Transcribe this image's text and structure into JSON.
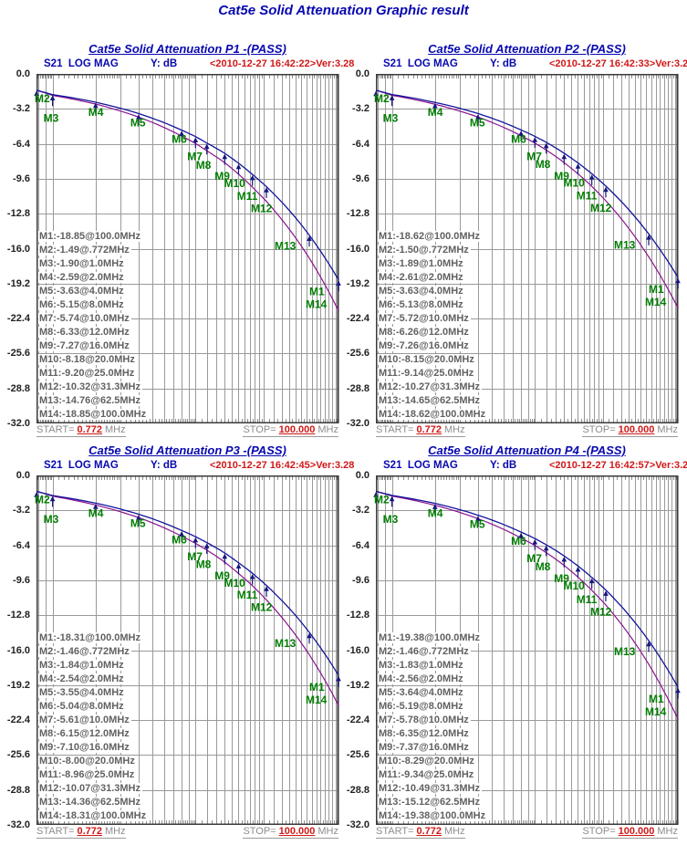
{
  "page_title": "Cat5e Solid Attenuation Graphic result",
  "colors": {
    "navy": "#0808b0",
    "red": "#d01818",
    "green": "#007d00",
    "trace_blue": "#14149b",
    "trace_purple": "#8a1390",
    "grid": "#9a9a9a",
    "ruler": "#8f8f8f",
    "border": "#3a3a3a",
    "marker_list_text": "#616161",
    "axis_text": "#222222",
    "range_text": "#8c8c8c"
  },
  "y_axis": {
    "unit": "dB",
    "ticks": [
      "0.0",
      "-3.2",
      "-6.4",
      "-9.6",
      "-12.8",
      "-16.0",
      "-19.2",
      "-22.4",
      "-25.6",
      "-28.8",
      "-32.0"
    ]
  },
  "marker_names": [
    "M2",
    "M3",
    "M4",
    "M5",
    "M6",
    "M7",
    "M8",
    "M9",
    "M10",
    "M11",
    "M12",
    "M13",
    "M14"
  ],
  "extra_marker_at_stop": "M1",
  "charts": [
    {
      "title": "Cat5e Solid Attenuation P1 -(PASS)",
      "header_meas": "S21  LOG MAG",
      "header_y": "Y: dB",
      "timestamp": "<2010-12-27 16:42:22>Ver:3.28",
      "start_label": "START=",
      "start_value": "0.772",
      "stop_label": "STOP=",
      "stop_value": "100.000",
      "freq_unit": "MHz",
      "marker_list": [
        "M1:-18.85@100.0MHz",
        "M2:-1.49@.772MHz",
        "M3:-1.90@1.0MHz",
        "M4:-2.59@2.0MHz",
        "M5:-3.63@4.0MHz",
        "M6:-5.15@8.0MHz",
        "M7:-5.74@10.0MHz",
        "M8:-6.33@12.0MHz",
        "M9:-7.27@16.0MHz",
        "M10:-8.18@20.0MHz",
        "M11:-9.20@25.0MHz",
        "M12:-10.32@31.3MHz",
        "M13:-14.76@62.5MHz",
        "M14:-18.85@100.0MHz"
      ]
    },
    {
      "title": "Cat5e Solid Attenuation P2 -(PASS)",
      "header_meas": "S21  LOG MAG",
      "header_y": "Y: dB",
      "timestamp": "<2010-12-27 16:42:33>Ver:3.28",
      "start_label": "START=",
      "start_value": "0.772",
      "stop_label": "STOP=",
      "stop_value": "100.000",
      "freq_unit": "MHz",
      "marker_list": [
        "M1:-18.62@100.0MHz",
        "M2:-1.50@.772MHz",
        "M3:-1.89@1.0MHz",
        "M4:-2.61@2.0MHz",
        "M5:-3.63@4.0MHz",
        "M6:-5.13@8.0MHz",
        "M7:-5.72@10.0MHz",
        "M8:-6.26@12.0MHz",
        "M9:-7.26@16.0MHz",
        "M10:-8.15@20.0MHz",
        "M11:-9.14@25.0MHz",
        "M12:-10.27@31.3MHz",
        "M13:-14.65@62.5MHz",
        "M14:-18.62@100.0MHz"
      ]
    },
    {
      "title": "Cat5e Solid Attenuation P3 -(PASS)",
      "header_meas": "S21  LOG MAG",
      "header_y": "Y: dB",
      "timestamp": "<2010-12-27 16:42:45>Ver:3.28",
      "start_label": "START=",
      "start_value": "0.772",
      "stop_label": "STOP=",
      "stop_value": "100.000",
      "freq_unit": "MHz",
      "marker_list": [
        "M1:-18.31@100.0MHz",
        "M2:-1.46@.772MHz",
        "M3:-1.84@1.0MHz",
        "M4:-2.54@2.0MHz",
        "M5:-3.55@4.0MHz",
        "M6:-5.04@8.0MHz",
        "M7:-5.61@10.0MHz",
        "M8:-6.15@12.0MHz",
        "M9:-7.10@16.0MHz",
        "M10:-8.00@20.0MHz",
        "M11:-8.96@25.0MHz",
        "M12:-10.07@31.3MHz",
        "M13:-14.36@62.5MHz",
        "M14:-18.31@100.0MHz"
      ]
    },
    {
      "title": "Cat5e Solid Attenuation P4 -(PASS)",
      "header_meas": "S21  LOG MAG",
      "header_y": "Y: dB",
      "timestamp": "<2010-12-27 16:42:57>Ver:3.28",
      "start_label": "START=",
      "start_value": "0.772",
      "stop_label": "STOP=",
      "stop_value": "100.000",
      "freq_unit": "MHz",
      "marker_list": [
        "M1:-19.38@100.0MHz",
        "M2:-1.46@.772MHz",
        "M3:-1.83@1.0MHz",
        "M4:-2.56@2.0MHz",
        "M5:-3.64@4.0MHz",
        "M6:-5.19@8.0MHz",
        "M7:-5.78@10.0MHz",
        "M8:-6.35@12.0MHz",
        "M9:-7.37@16.0MHz",
        "M10:-8.29@20.0MHz",
        "M11:-9.34@25.0MHz",
        "M12:-10.49@31.3MHz",
        "M13:-15.12@62.5MHz",
        "M14:-19.38@100.0MHz"
      ]
    }
  ],
  "chart_data": [
    {
      "type": "line",
      "title": "Cat5e Solid Attenuation P1 -(PASS)",
      "x_scale": "log",
      "x_mhz": [
        0.772,
        1,
        2,
        4,
        8,
        10,
        12,
        16,
        20,
        25,
        31.3,
        62.5,
        100
      ],
      "xlim_mhz": [
        0.772,
        100
      ],
      "ylabel": "dB",
      "ylim": [
        -32,
        0
      ],
      "y_grid_step_db": 3.2,
      "series": [
        {
          "name": "S21 attenuation (blue trace, markers M1-M14)",
          "values": [
            -1.49,
            -1.9,
            -2.59,
            -3.63,
            -5.15,
            -5.74,
            -6.33,
            -7.27,
            -8.18,
            -9.2,
            -10.32,
            -14.76,
            -18.85
          ]
        },
        {
          "name": "second trace (purple, unlabeled, values estimated from plot)",
          "values": [
            -1.49,
            -1.97,
            -2.76,
            -3.95,
            -5.69,
            -6.37,
            -7.04,
            -8.13,
            -9.18,
            -10.37,
            -11.67,
            -16.86,
            -21.68
          ]
        }
      ]
    },
    {
      "type": "line",
      "title": "Cat5e Solid Attenuation P2 -(PASS)",
      "x_scale": "log",
      "x_mhz": [
        0.772,
        1,
        2,
        4,
        8,
        10,
        12,
        16,
        20,
        25,
        31.3,
        62.5,
        100
      ],
      "xlim_mhz": [
        0.772,
        100
      ],
      "ylabel": "dB",
      "ylim": [
        -32,
        0
      ],
      "y_grid_step_db": 3.2,
      "series": [
        {
          "name": "S21 attenuation (blue trace, markers M1-M14)",
          "values": [
            -1.5,
            -1.89,
            -2.61,
            -3.63,
            -5.13,
            -5.72,
            -6.26,
            -7.26,
            -8.15,
            -9.14,
            -10.27,
            -14.65,
            -18.62
          ]
        },
        {
          "name": "second trace (purple, unlabeled, values estimated from plot)",
          "values": [
            -1.5,
            -1.96,
            -2.78,
            -3.95,
            -5.66,
            -6.34,
            -6.97,
            -8.12,
            -9.15,
            -10.3,
            -11.61,
            -16.74,
            -21.41
          ]
        }
      ]
    },
    {
      "type": "line",
      "title": "Cat5e Solid Attenuation P3 -(PASS)",
      "x_scale": "log",
      "x_mhz": [
        0.772,
        1,
        2,
        4,
        8,
        10,
        12,
        16,
        20,
        25,
        31.3,
        62.5,
        100
      ],
      "xlim_mhz": [
        0.772,
        100
      ],
      "ylabel": "dB",
      "ylim": [
        -32,
        0
      ],
      "y_grid_step_db": 3.2,
      "series": [
        {
          "name": "S21 attenuation (blue trace, markers M1-M14)",
          "values": [
            -1.46,
            -1.84,
            -2.54,
            -3.55,
            -5.04,
            -5.61,
            -6.15,
            -7.1,
            -8.0,
            -8.96,
            -10.07,
            -14.36,
            -18.31
          ]
        },
        {
          "name": "second trace (purple, unlabeled, values estimated from plot)",
          "values": [
            -1.46,
            -1.9,
            -2.71,
            -3.86,
            -5.56,
            -6.22,
            -6.84,
            -7.94,
            -8.98,
            -10.1,
            -11.39,
            -16.41,
            -21.06
          ]
        }
      ]
    },
    {
      "type": "line",
      "title": "Cat5e Solid Attenuation P4 -(PASS)",
      "x_scale": "log",
      "x_mhz": [
        0.772,
        1,
        2,
        4,
        8,
        10,
        12,
        16,
        20,
        25,
        31.3,
        62.5,
        100
      ],
      "xlim_mhz": [
        0.772,
        100
      ],
      "ylabel": "dB",
      "ylim": [
        -32,
        0
      ],
      "y_grid_step_db": 3.2,
      "series": [
        {
          "name": "S21 attenuation (blue trace, markers M1-M14)",
          "values": [
            -1.46,
            -1.83,
            -2.56,
            -3.64,
            -5.19,
            -5.78,
            -6.35,
            -7.37,
            -8.29,
            -9.34,
            -10.49,
            -15.12,
            -19.38
          ]
        },
        {
          "name": "second trace (purple, unlabeled, values estimated from plot)",
          "values": [
            -1.46,
            -1.89,
            -2.73,
            -3.96,
            -5.73,
            -6.41,
            -7.07,
            -8.24,
            -9.31,
            -10.52,
            -11.86,
            -17.28,
            -22.29
          ]
        }
      ]
    }
  ]
}
